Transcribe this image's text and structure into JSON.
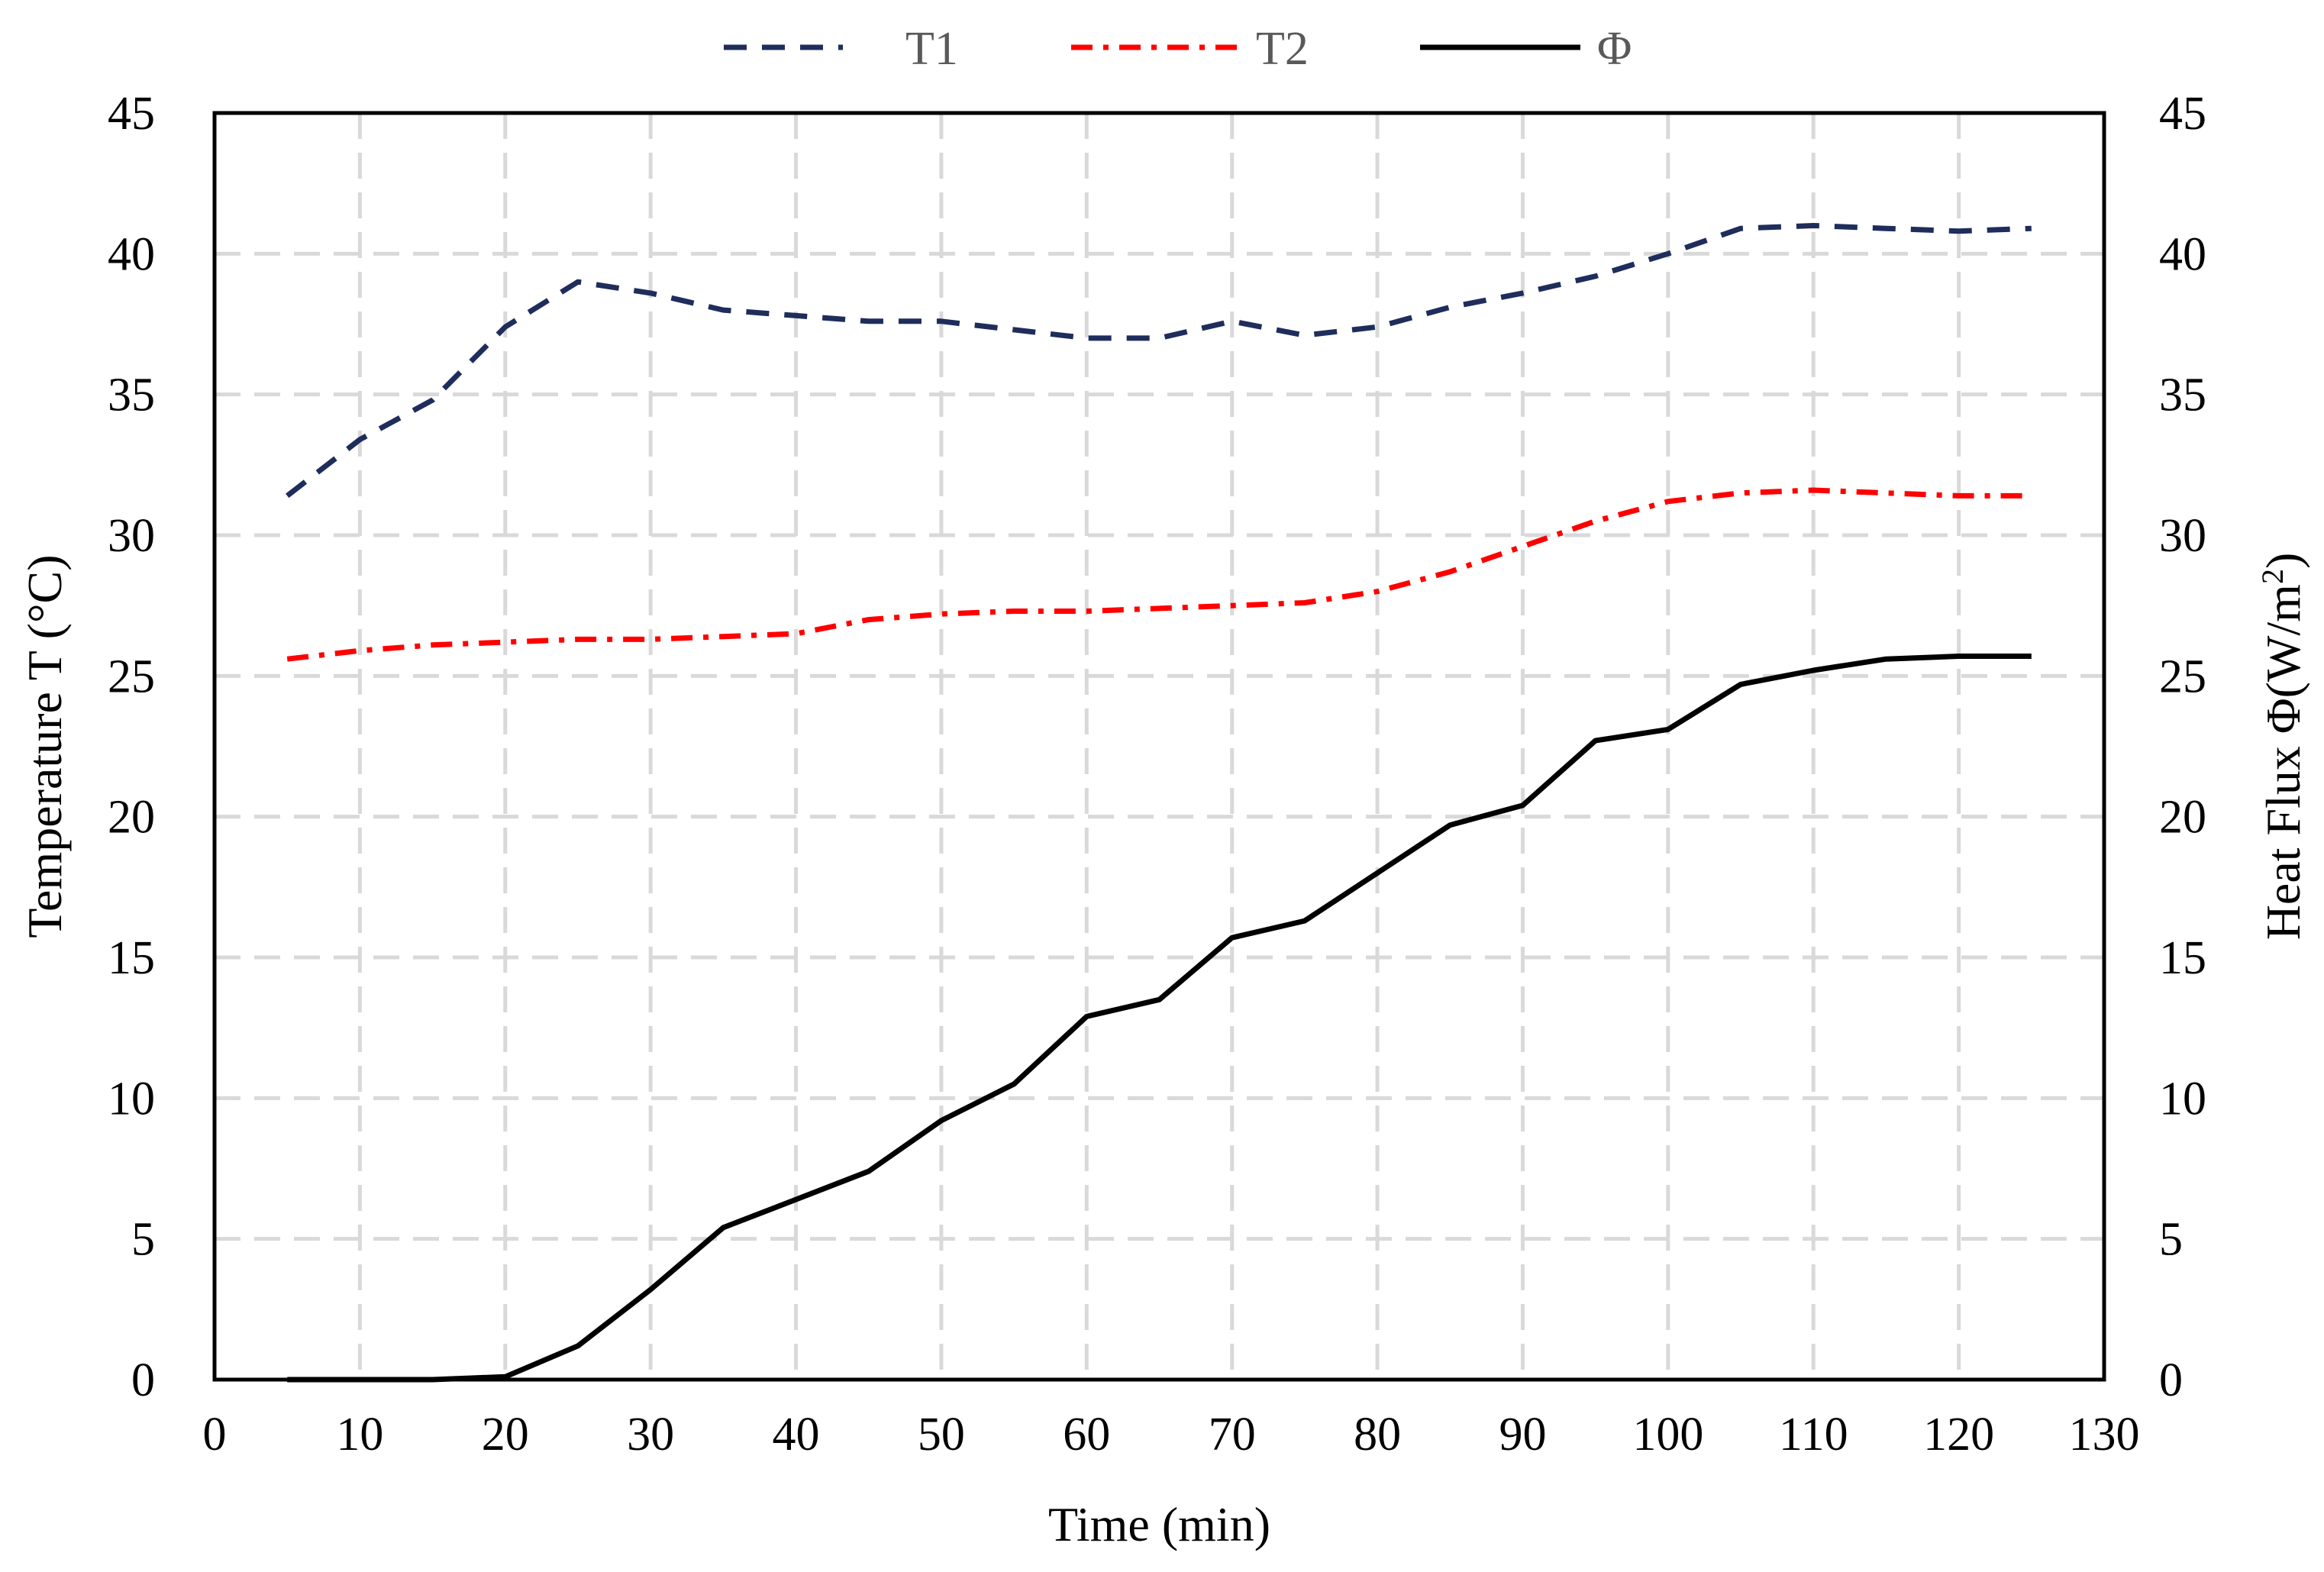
{
  "chart_data": {
    "type": "line",
    "title": "",
    "xlabel": "Time (min)",
    "ylabel": "Temperature T (°C)",
    "y2label_prefix": "Heat Flux Φ(W/m",
    "y2label_sup": "2",
    "y2label_suffix": ")",
    "xlim": [
      0,
      130
    ],
    "ylim": [
      0,
      45
    ],
    "y2lim": [
      0,
      45
    ],
    "x_ticks": [
      "0",
      "10",
      "20",
      "30",
      "40",
      "50",
      "60",
      "70",
      "80",
      "90",
      "100",
      "110",
      "120",
      "130"
    ],
    "y_ticks": [
      "0",
      "5",
      "10",
      "15",
      "20",
      "25",
      "30",
      "35",
      "40",
      "45"
    ],
    "y2_ticks": [
      "0",
      "5",
      "10",
      "15",
      "20",
      "25",
      "30",
      "35",
      "40",
      "45"
    ],
    "grid": true,
    "legend_position": "top",
    "x": [
      5,
      10,
      15,
      20,
      25,
      30,
      35,
      40,
      45,
      50,
      55,
      60,
      65,
      70,
      75,
      80,
      85,
      90,
      95,
      100,
      105,
      110,
      115,
      120,
      125
    ],
    "series": [
      {
        "name": "T1",
        "axis": "left",
        "style": "dash",
        "color": "#1f2d5c",
        "values": [
          31.4,
          33.4,
          34.8,
          37.4,
          39.0,
          38.6,
          38.0,
          37.8,
          37.6,
          37.6,
          37.3,
          37.0,
          37.0,
          37.6,
          37.1,
          37.4,
          38.1,
          38.6,
          39.2,
          40.0,
          40.9,
          41.0,
          40.9,
          40.8,
          40.9
        ]
      },
      {
        "name": "T2",
        "axis": "left",
        "style": "dash-dot",
        "color": "#ff0000",
        "values": [
          25.6,
          25.9,
          26.1,
          26.2,
          26.3,
          26.3,
          26.4,
          26.5,
          27.0,
          27.2,
          27.3,
          27.3,
          27.4,
          27.5,
          27.6,
          28.0,
          28.7,
          29.6,
          30.5,
          31.2,
          31.5,
          31.6,
          31.5,
          31.4,
          31.4
        ]
      },
      {
        "name": "Φ",
        "axis": "right",
        "style": "solid",
        "color": "#000000",
        "values": [
          0.0,
          0.0,
          0.0,
          0.1,
          1.2,
          3.2,
          5.4,
          6.4,
          7.4,
          9.2,
          10.5,
          12.9,
          13.5,
          15.7,
          16.3,
          18.0,
          19.7,
          20.4,
          22.7,
          23.1,
          24.7,
          25.2,
          25.6,
          25.7,
          25.7
        ]
      }
    ]
  }
}
